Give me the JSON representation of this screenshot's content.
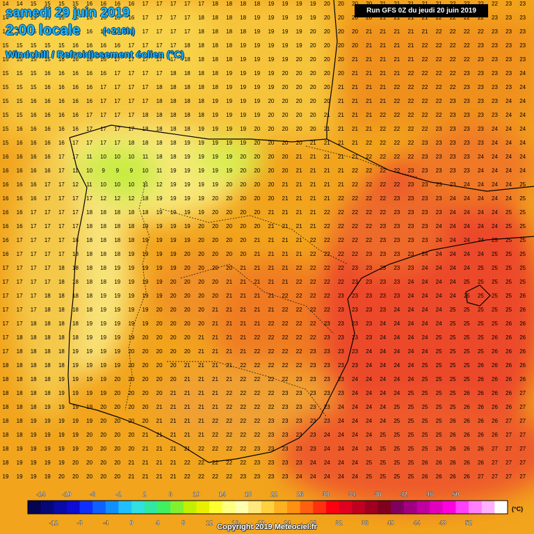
{
  "header": {
    "date": "samedi 29 juin 2019",
    "time": "2:00 locale",
    "lead": "(+216h)",
    "variable": "Windchill / Refroidissement éolien (°C)",
    "run": "Run GFS 0Z du jeudi 20 juin 2019"
  },
  "legend": {
    "unit": "(°C)",
    "top_labels": [
      "-14",
      "-10",
      "-6",
      "-2",
      "2",
      "6",
      "10",
      "14",
      "18",
      "22",
      "26",
      "30",
      "34",
      "38",
      "42",
      "46",
      "50"
    ],
    "bottom_labels": [
      "-12",
      "-8",
      "-4",
      "0",
      "4",
      "8",
      "12",
      "16",
      "20",
      "24",
      "28",
      "32",
      "36",
      "40",
      "44",
      "48",
      "52"
    ],
    "colors": [
      "#04044f",
      "#07077a",
      "#0a0aa6",
      "#0c0cd2",
      "#0f2fff",
      "#1060ff",
      "#1090ff",
      "#20c0ff",
      "#30e0e0",
      "#30e8a0",
      "#40f060",
      "#80f030",
      "#c0f000",
      "#e8f000",
      "#ffff30",
      "#ffff80",
      "#ffffb0",
      "#ffe880",
      "#ffd040",
      "#ffb020",
      "#ff9010",
      "#ff6010",
      "#ff3010",
      "#ff0010",
      "#e00020",
      "#c00020",
      "#a00020",
      "#800020",
      "#800060",
      "#a00080",
      "#c000a0",
      "#e000c0",
      "#ff00e0",
      "#ff40ff",
      "#ff80ff",
      "#ffb0ff",
      "#ffffff"
    ]
  },
  "copyright": "Copyright 2019 Meteociel.fr"
}
